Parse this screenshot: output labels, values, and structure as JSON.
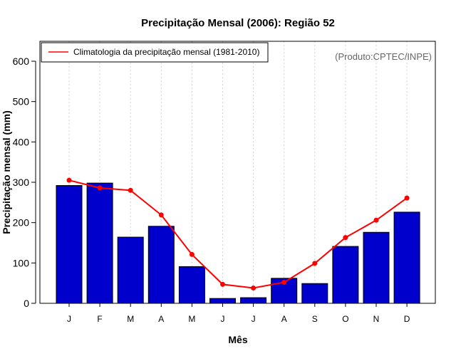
{
  "chart_data": {
    "type": "bar",
    "title": "Precipitação Mensal (2006): Região 52",
    "xlabel": "Mês",
    "ylabel": "Precipitação mensal (mm)",
    "ylim": [
      0,
      650
    ],
    "yticks": [
      0,
      100,
      200,
      300,
      400,
      500,
      600
    ],
    "categories": [
      "J",
      "F",
      "M",
      "A",
      "M",
      "J",
      "J",
      "A",
      "S",
      "O",
      "N",
      "D"
    ],
    "series": [
      {
        "name": "Precipitação mensal 2006",
        "type": "bar",
        "color": "#0000cc",
        "values": [
          292,
          298,
          164,
          191,
          91,
          12,
          14,
          62,
          49,
          141,
          176,
          226
        ]
      },
      {
        "name": "Climatologia da precipitação mensal (1981-2010)",
        "type": "line",
        "color": "#ff0000",
        "values": [
          305,
          286,
          280,
          219,
          121,
          47,
          38,
          52,
          99,
          163,
          206,
          261
        ]
      }
    ],
    "legend": {
      "position": "top-left",
      "entries": [
        "Climatologia da precipitação mensal (1981-2010)"
      ]
    },
    "grid": "vertical-dotted",
    "annotation": "(Produto:CPTEC/INPE)"
  }
}
